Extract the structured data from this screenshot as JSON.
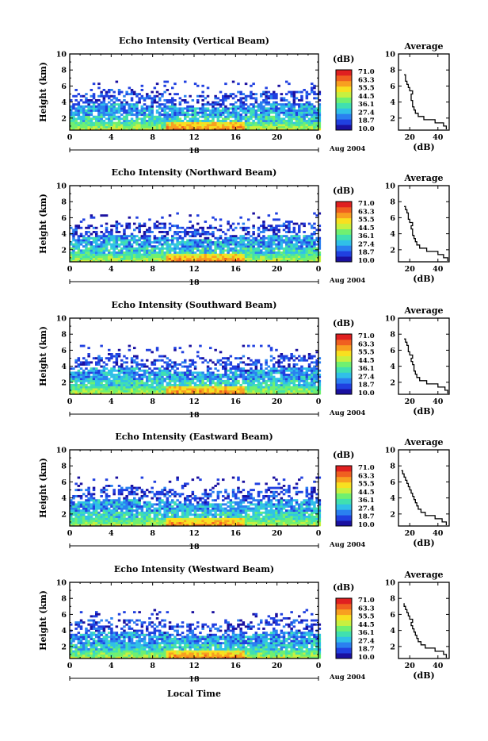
{
  "chart_data": {
    "type": "heatmap",
    "xlabel": "Local Time",
    "date_label": "Aug 2004",
    "day_label": "18",
    "x_ticks": [
      "0",
      "4",
      "8",
      "12",
      "16",
      "20",
      "0"
    ],
    "x_range": [
      0,
      24
    ],
    "y_label": "Height (km)",
    "y_ticks": [
      "2",
      "4",
      "6",
      "8",
      "10"
    ],
    "y_range": [
      0.5,
      10
    ],
    "colorbar": {
      "unit": "(dB)",
      "levels": [
        "71.0",
        "63.3",
        "55.5",
        "44.5",
        "36.1",
        "27.4",
        "18.7",
        "10.0"
      ],
      "colors": [
        "#1a10a0",
        "#2040e0",
        "#2a80f0",
        "#30c0e8",
        "#40e0b0",
        "#70f070",
        "#c8f040",
        "#f8e020",
        "#f8a020",
        "#f06020",
        "#e02020"
      ]
    },
    "average_panel": {
      "title": "Average",
      "xlabel": "(dB)",
      "x_ticks": [
        "20",
        "40"
      ],
      "x_range": [
        12,
        48
      ]
    },
    "panels": [
      {
        "title": "Echo Intensity (Vertical Beam)",
        "avg_profile": [
          [
            0.6,
            46
          ],
          [
            1.0,
            44
          ],
          [
            1.4,
            38
          ],
          [
            1.8,
            30
          ],
          [
            2.2,
            26
          ],
          [
            2.6,
            24
          ],
          [
            3.0,
            23
          ],
          [
            3.4,
            22
          ],
          [
            3.8,
            22
          ],
          [
            4.2,
            21
          ],
          [
            4.6,
            21
          ],
          [
            5.0,
            22
          ],
          [
            5.4,
            20
          ],
          [
            5.8,
            19
          ],
          [
            6.2,
            18
          ],
          [
            6.6,
            17
          ],
          [
            7.0,
            17
          ],
          [
            7.4,
            16
          ]
        ]
      },
      {
        "title": "Echo Intensity (Northward Beam)",
        "avg_profile": [
          [
            0.6,
            47
          ],
          [
            1.0,
            44
          ],
          [
            1.4,
            40
          ],
          [
            1.8,
            32
          ],
          [
            2.2,
            27
          ],
          [
            2.6,
            25
          ],
          [
            3.0,
            24
          ],
          [
            3.4,
            23
          ],
          [
            3.8,
            22
          ],
          [
            4.2,
            22
          ],
          [
            4.6,
            21
          ],
          [
            5.0,
            22
          ],
          [
            5.4,
            20
          ],
          [
            5.8,
            19
          ],
          [
            6.2,
            19
          ],
          [
            6.6,
            18
          ],
          [
            7.0,
            17
          ],
          [
            7.4,
            16
          ]
        ]
      },
      {
        "title": "Echo Intensity (Southward Beam)",
        "avg_profile": [
          [
            0.6,
            47
          ],
          [
            1.0,
            45
          ],
          [
            1.4,
            40
          ],
          [
            1.8,
            32
          ],
          [
            2.2,
            27
          ],
          [
            2.6,
            25
          ],
          [
            3.0,
            24
          ],
          [
            3.4,
            23
          ],
          [
            3.8,
            23
          ],
          [
            4.2,
            22
          ],
          [
            4.6,
            21
          ],
          [
            5.0,
            22
          ],
          [
            5.4,
            20
          ],
          [
            5.8,
            19
          ],
          [
            6.2,
            19
          ],
          [
            6.6,
            18
          ],
          [
            7.0,
            17
          ],
          [
            7.4,
            16
          ]
        ]
      },
      {
        "title": "Echo Intensity (Eastward Beam)",
        "avg_profile": [
          [
            0.6,
            46
          ],
          [
            1.0,
            43
          ],
          [
            1.4,
            38
          ],
          [
            1.8,
            31
          ],
          [
            2.2,
            28
          ],
          [
            2.6,
            26
          ],
          [
            3.0,
            25
          ],
          [
            3.4,
            24
          ],
          [
            3.8,
            23
          ],
          [
            4.2,
            22
          ],
          [
            4.6,
            21
          ],
          [
            5.0,
            20
          ],
          [
            5.4,
            19
          ],
          [
            5.8,
            18
          ],
          [
            6.2,
            17
          ],
          [
            6.6,
            16
          ],
          [
            7.0,
            15
          ],
          [
            7.4,
            14
          ]
        ]
      },
      {
        "title": "Echo Intensity (Westward Beam)",
        "avg_profile": [
          [
            0.6,
            46
          ],
          [
            1.0,
            44
          ],
          [
            1.4,
            38
          ],
          [
            1.8,
            31
          ],
          [
            2.2,
            28
          ],
          [
            2.6,
            26
          ],
          [
            3.0,
            25
          ],
          [
            3.4,
            24
          ],
          [
            3.8,
            23
          ],
          [
            4.2,
            22
          ],
          [
            4.6,
            21
          ],
          [
            5.0,
            22
          ],
          [
            5.4,
            20
          ],
          [
            5.8,
            19
          ],
          [
            6.2,
            18
          ],
          [
            6.6,
            17
          ],
          [
            7.0,
            16
          ],
          [
            7.4,
            16
          ]
        ]
      }
    ]
  }
}
